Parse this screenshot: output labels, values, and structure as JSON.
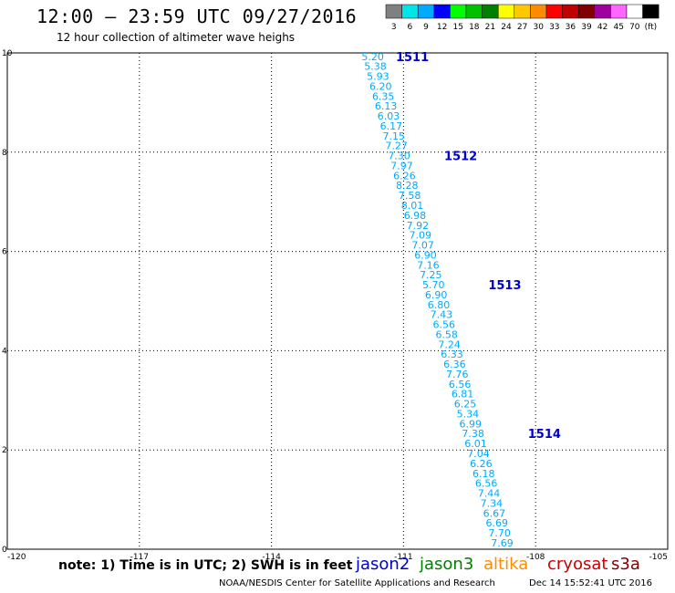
{
  "header": {
    "title": "12:00 – 23:59 UTC 09/27/2016",
    "subtitle": "12 hour collection of altimeter wave heighs"
  },
  "legend_scale": {
    "labels": [
      "3",
      "6",
      "9",
      "12",
      "15",
      "18",
      "21",
      "24",
      "27",
      "30",
      "33",
      "36",
      "39",
      "42",
      "45",
      "70",
      "(ft)"
    ],
    "colors": [
      "#808080",
      "#00e5e5",
      "#00aaff",
      "#0000ff",
      "#00ff00",
      "#00c000",
      "#008000",
      "#ffff00",
      "#ffc800",
      "#ff8c00",
      "#ff0000",
      "#c00000",
      "#800000",
      "#a000a0",
      "#ff66ff",
      "#ffffff",
      "#000000"
    ]
  },
  "note": "note: 1) Time is in UTC; 2) SWH is in feet",
  "satellites": [
    {
      "name": "jason2",
      "color": "#0000cc"
    },
    {
      "name": "jason3",
      "color": "#008000"
    },
    {
      "name": "altika",
      "color": "#ff8c00"
    },
    {
      "name": "cryosat",
      "color": "#cc0000"
    },
    {
      "name": "s3a",
      "color": "#800000"
    }
  ],
  "footer": {
    "credit": "NOAA/NESDIS Center for Satellite Applications and Research",
    "timestamp": "Dec 14 15:52:41 UTC 2016"
  },
  "chart_data": {
    "type": "scatter",
    "xlim": [
      -120,
      -105
    ],
    "ylim": [
      0,
      10
    ],
    "xticks": [
      "-120",
      "-117",
      "-114",
      "-111",
      "-108",
      "-105"
    ],
    "yticks": [
      "0",
      "2",
      "4",
      "6",
      "8",
      "10"
    ],
    "grid": true,
    "point_color": "#00aaff",
    "label_color": "#0000cc",
    "points": [
      {
        "x": -111.7,
        "y": 9.93,
        "v": "5.20"
      },
      {
        "x": -111.64,
        "y": 9.73,
        "v": "5.38"
      },
      {
        "x": -111.58,
        "y": 9.53,
        "v": "5.93"
      },
      {
        "x": -111.52,
        "y": 9.33,
        "v": "6.20"
      },
      {
        "x": -111.46,
        "y": 9.13,
        "v": "6.35"
      },
      {
        "x": -111.4,
        "y": 8.93,
        "v": "6.13"
      },
      {
        "x": -111.34,
        "y": 8.73,
        "v": "6.03"
      },
      {
        "x": -111.28,
        "y": 8.53,
        "v": "6.17"
      },
      {
        "x": -111.22,
        "y": 8.33,
        "v": "7.15"
      },
      {
        "x": -111.16,
        "y": 8.13,
        "v": "7.27"
      },
      {
        "x": -111.1,
        "y": 7.93,
        "v": "7.30"
      },
      {
        "x": -111.04,
        "y": 7.73,
        "v": "7.97"
      },
      {
        "x": -110.98,
        "y": 7.53,
        "v": "6.26"
      },
      {
        "x": -110.92,
        "y": 7.33,
        "v": "8.28"
      },
      {
        "x": -110.86,
        "y": 7.13,
        "v": "7.58"
      },
      {
        "x": -110.8,
        "y": 6.93,
        "v": "8.01"
      },
      {
        "x": -110.74,
        "y": 6.73,
        "v": "6.98"
      },
      {
        "x": -110.68,
        "y": 6.53,
        "v": "7.92"
      },
      {
        "x": -110.62,
        "y": 6.33,
        "v": "7.09"
      },
      {
        "x": -110.56,
        "y": 6.13,
        "v": "7.07"
      },
      {
        "x": -110.5,
        "y": 5.93,
        "v": "6.90"
      },
      {
        "x": -110.44,
        "y": 5.73,
        "v": "7.16"
      },
      {
        "x": -110.38,
        "y": 5.53,
        "v": "7.25"
      },
      {
        "x": -110.32,
        "y": 5.33,
        "v": "5.70"
      },
      {
        "x": -110.26,
        "y": 5.13,
        "v": "6.90"
      },
      {
        "x": -110.2,
        "y": 4.93,
        "v": "6.80"
      },
      {
        "x": -110.14,
        "y": 4.73,
        "v": "7.43"
      },
      {
        "x": -110.08,
        "y": 4.53,
        "v": "6.56"
      },
      {
        "x": -110.02,
        "y": 4.33,
        "v": "6.58"
      },
      {
        "x": -109.96,
        "y": 4.13,
        "v": "7.24"
      },
      {
        "x": -109.9,
        "y": 3.93,
        "v": "6.33"
      },
      {
        "x": -109.84,
        "y": 3.73,
        "v": "6.36"
      },
      {
        "x": -109.78,
        "y": 3.53,
        "v": "7.76"
      },
      {
        "x": -109.72,
        "y": 3.33,
        "v": "6.56"
      },
      {
        "x": -109.66,
        "y": 3.13,
        "v": "6.81"
      },
      {
        "x": -109.6,
        "y": 2.93,
        "v": "6.25"
      },
      {
        "x": -109.54,
        "y": 2.73,
        "v": "5.34"
      },
      {
        "x": -109.48,
        "y": 2.53,
        "v": "6.99"
      },
      {
        "x": -109.42,
        "y": 2.33,
        "v": "7.38"
      },
      {
        "x": -109.36,
        "y": 2.13,
        "v": "6.01"
      },
      {
        "x": -109.3,
        "y": 1.93,
        "v": "7.04"
      },
      {
        "x": -109.24,
        "y": 1.73,
        "v": "6.26"
      },
      {
        "x": -109.18,
        "y": 1.53,
        "v": "6.18"
      },
      {
        "x": -109.12,
        "y": 1.33,
        "v": "6.56"
      },
      {
        "x": -109.06,
        "y": 1.13,
        "v": "7.44"
      },
      {
        "x": -109.0,
        "y": 0.93,
        "v": "7.34"
      },
      {
        "x": -108.94,
        "y": 0.73,
        "v": "6.67"
      },
      {
        "x": -108.88,
        "y": 0.53,
        "v": "6.69"
      },
      {
        "x": -108.82,
        "y": 0.33,
        "v": "7.70"
      },
      {
        "x": -108.76,
        "y": 0.13,
        "v": "7.69"
      }
    ],
    "time_labels": [
      {
        "x": -110.8,
        "y": 9.93,
        "v": "1511"
      },
      {
        "x": -109.7,
        "y": 7.93,
        "v": "1512"
      },
      {
        "x": -108.7,
        "y": 5.33,
        "v": "1513"
      },
      {
        "x": -107.8,
        "y": 2.33,
        "v": "1514"
      }
    ]
  }
}
